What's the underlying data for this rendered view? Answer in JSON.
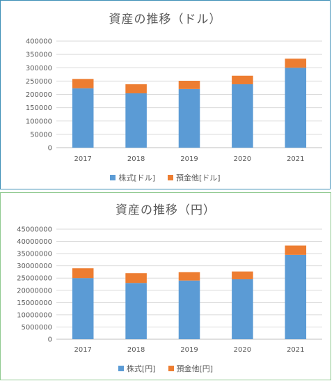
{
  "colors": {
    "stock": "#5b9bd5",
    "cash": "#ed7d31",
    "grid": "#d9d9d9"
  },
  "chart_data": [
    {
      "type": "bar",
      "stacked": true,
      "title": "資産の推移（ドル）",
      "categories": [
        "2017",
        "2018",
        "2019",
        "2020",
        "2021"
      ],
      "series": [
        {
          "name": "株式[ドル]",
          "values": [
            223000,
            204000,
            220000,
            238000,
            300000
          ]
        },
        {
          "name": "預金他[ドル]",
          "values": [
            35000,
            34000,
            31000,
            32000,
            34000
          ]
        }
      ],
      "ylim": [
        0,
        400000
      ],
      "yticks": [
        "0",
        "50000",
        "100000",
        "150000",
        "200000",
        "250000",
        "300000",
        "350000",
        "400000"
      ],
      "grid": true,
      "legend": "bottom"
    },
    {
      "type": "bar",
      "stacked": true,
      "title": "資産の推移（円）",
      "categories": [
        "2017",
        "2018",
        "2019",
        "2020",
        "2021"
      ],
      "series": [
        {
          "name": "株式[円]",
          "values": [
            25000000,
            23000000,
            24000000,
            24500000,
            34500000
          ]
        },
        {
          "name": "預金他[円]",
          "values": [
            4000000,
            4000000,
            3400000,
            3200000,
            3800000
          ]
        }
      ],
      "ylim": [
        0,
        45000000
      ],
      "yticks": [
        "0",
        "5000000",
        "10000000",
        "15000000",
        "20000000",
        "25000000",
        "30000000",
        "35000000",
        "40000000",
        "45000000"
      ],
      "grid": true,
      "legend": "bottom"
    }
  ]
}
